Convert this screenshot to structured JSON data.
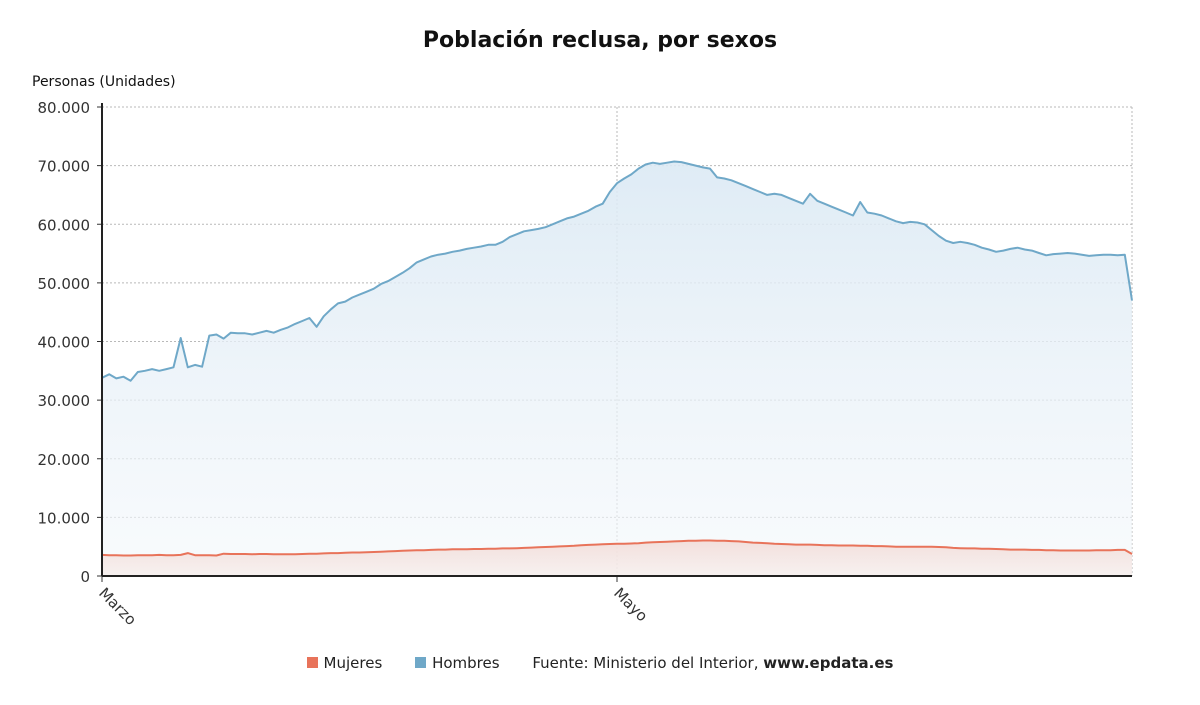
{
  "title": "Población reclusa, por sexos",
  "chart_data": {
    "type": "area",
    "title": "Población reclusa, por sexos",
    "ylabel": "Personas (Unidades)",
    "ylim": [
      0,
      80000
    ],
    "yticks": [
      "0",
      "10.000",
      "20.000",
      "30.000",
      "40.000",
      "50.000",
      "60.000",
      "70.000",
      "80.000"
    ],
    "xticks": [
      "Marzo",
      "Mayo"
    ],
    "grid": true,
    "legend_position": "bottom",
    "series": [
      {
        "name": "Mujeres",
        "color": "#e8735a",
        "values": [
          3600,
          3550,
          3550,
          3500,
          3500,
          3550,
          3550,
          3550,
          3600,
          3550,
          3550,
          3600,
          3900,
          3550,
          3550,
          3550,
          3500,
          3800,
          3750,
          3750,
          3750,
          3700,
          3750,
          3750,
          3700,
          3700,
          3700,
          3700,
          3750,
          3800,
          3800,
          3850,
          3900,
          3900,
          3950,
          4000,
          4000,
          4050,
          4100,
          4150,
          4200,
          4250,
          4300,
          4350,
          4400,
          4400,
          4450,
          4500,
          4500,
          4550,
          4550,
          4550,
          4600,
          4600,
          4650,
          4650,
          4700,
          4700,
          4750,
          4800,
          4850,
          4900,
          4950,
          5000,
          5050,
          5100,
          5150,
          5250,
          5300,
          5350,
          5400,
          5450,
          5500,
          5500,
          5550,
          5600,
          5700,
          5750,
          5800,
          5850,
          5900,
          5950,
          6000,
          6000,
          6050,
          6050,
          6000,
          6000,
          5950,
          5900,
          5800,
          5700,
          5650,
          5600,
          5500,
          5450,
          5400,
          5350,
          5350,
          5350,
          5300,
          5250,
          5250,
          5200,
          5200,
          5200,
          5150,
          5150,
          5100,
          5100,
          5050,
          5000,
          5000,
          5000,
          5000,
          5000,
          5000,
          4950,
          4900,
          4800,
          4750,
          4700,
          4700,
          4650,
          4650,
          4600,
          4550,
          4500,
          4500,
          4500,
          4450,
          4450,
          4400,
          4400,
          4350,
          4350,
          4350,
          4350,
          4350,
          4400,
          4400,
          4400,
          4450,
          4450,
          3750
        ]
      },
      {
        "name": "Hombres",
        "color": "#6fa8c8",
        "values": [
          33800,
          34400,
          33700,
          34000,
          33300,
          34800,
          35000,
          35300,
          35000,
          35300,
          35600,
          40600,
          35600,
          36000,
          35700,
          41000,
          41200,
          40500,
          41500,
          41400,
          41400,
          41200,
          41500,
          41800,
          41500,
          42000,
          42400,
          43000,
          43500,
          44000,
          42500,
          44300,
          45500,
          46500,
          46800,
          47500,
          48000,
          48500,
          49000,
          49800,
          50300,
          51000,
          51700,
          52500,
          53500,
          54000,
          54500,
          54800,
          55000,
          55300,
          55500,
          55800,
          56000,
          56200,
          56500,
          56500,
          57000,
          57800,
          58300,
          58800,
          59000,
          59200,
          59500,
          60000,
          60500,
          61000,
          61300,
          61800,
          62300,
          63000,
          63500,
          65500,
          67000,
          67800,
          68500,
          69500,
          70200,
          70500,
          70300,
          70500,
          70700,
          70600,
          70300,
          70000,
          69700,
          69500,
          68000,
          67800,
          67500,
          67000,
          66500,
          66000,
          65500,
          65000,
          65200,
          65000,
          64500,
          64000,
          63500,
          65200,
          64000,
          63500,
          63000,
          62500,
          62000,
          61500,
          63800,
          62000,
          61800,
          61500,
          61000,
          60500,
          60200,
          60400,
          60300,
          60000,
          59000,
          58000,
          57200,
          56800,
          57000,
          56800,
          56500,
          56000,
          55700,
          55300,
          55500,
          55800,
          56000,
          55700,
          55500,
          55100,
          54700,
          54900,
          55000,
          55100,
          55000,
          54800,
          54600,
          54700,
          54800,
          54800,
          54700,
          54800,
          47000
        ]
      }
    ]
  },
  "legend": {
    "items": [
      {
        "label": "Mujeres",
        "color": "#e8735a"
      },
      {
        "label": "Hombres",
        "color": "#6fa8c8"
      }
    ],
    "source_label": "Fuente: Ministerio del Interior, ",
    "source_site": "www.epdata.es"
  }
}
